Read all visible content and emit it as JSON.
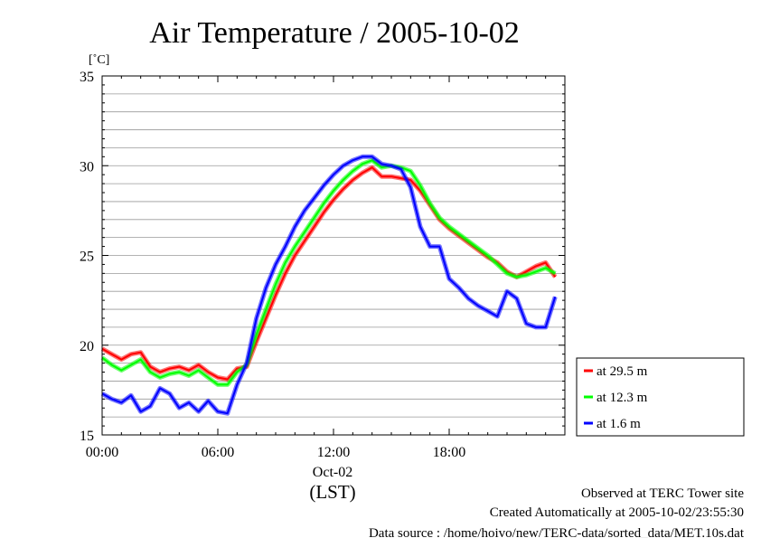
{
  "title": "Air Temperature / 2005-10-02",
  "y_unit": "[˚C]",
  "x_date_label": "Oct-02",
  "x_tz_label": "(LST)",
  "footer": {
    "line1": "Observed at TERC Tower site",
    "line2": "Created Automatically at 2005-10-02/23:55:30",
    "line3": "Data source : /home/hoivo/new/TERC-data/sorted_data/MET.10s.dat"
  },
  "chart_data": {
    "type": "line",
    "title": "Air Temperature / 2005-10-02",
    "xlabel": "(LST)",
    "ylabel": "[˚C]",
    "xlim": [
      0,
      24
    ],
    "ylim": [
      15,
      35
    ],
    "x_ticks": [
      {
        "value": 0,
        "label": "00:00"
      },
      {
        "value": 6,
        "label": "06:00"
      },
      {
        "value": 12,
        "label": "12:00"
      },
      {
        "value": 18,
        "label": "18:00"
      }
    ],
    "y_ticks": [
      {
        "value": 15,
        "label": "15"
      },
      {
        "value": 20,
        "label": "20"
      },
      {
        "value": 25,
        "label": "25"
      },
      {
        "value": 30,
        "label": "30"
      },
      {
        "value": 35,
        "label": "35"
      }
    ],
    "grid": true,
    "grid_step_y": 1,
    "legend_position": "right",
    "series": [
      {
        "name": "at 29.5 m",
        "color": "#ff0000",
        "x": [
          0,
          0.5,
          1,
          1.5,
          2,
          2.5,
          3,
          3.5,
          4,
          4.5,
          5,
          5.5,
          6,
          6.5,
          7,
          7.5,
          8,
          8.5,
          9,
          9.5,
          10,
          10.5,
          11,
          11.5,
          12,
          12.5,
          13,
          13.5,
          14,
          14.5,
          15,
          15.5,
          16,
          16.5,
          17,
          17.5,
          18,
          18.5,
          19,
          19.5,
          20,
          20.5,
          21,
          21.5,
          22,
          22.5,
          23,
          23.5
        ],
        "y": [
          19.8,
          19.5,
          19.2,
          19.5,
          19.6,
          18.8,
          18.5,
          18.7,
          18.8,
          18.6,
          18.9,
          18.5,
          18.2,
          18.1,
          18.7,
          18.8,
          20.2,
          21.5,
          22.8,
          24.0,
          25.0,
          25.8,
          26.6,
          27.4,
          28.1,
          28.7,
          29.2,
          29.6,
          29.9,
          29.4,
          29.4,
          29.3,
          29.2,
          28.6,
          27.8,
          27.0,
          26.5,
          26.1,
          25.7,
          25.3,
          24.9,
          24.6,
          24.1,
          23.8,
          24.1,
          24.4,
          24.6,
          23.8
        ]
      },
      {
        "name": "at 12.3 m",
        "color": "#00ff00",
        "x": [
          0,
          0.5,
          1,
          1.5,
          2,
          2.5,
          3,
          3.5,
          4,
          4.5,
          5,
          5.5,
          6,
          6.5,
          7,
          7.5,
          8,
          8.5,
          9,
          9.5,
          10,
          10.5,
          11,
          11.5,
          12,
          12.5,
          13,
          13.5,
          14,
          14.5,
          15,
          15.5,
          16,
          16.5,
          17,
          17.5,
          18,
          18.5,
          19,
          19.5,
          20,
          20.5,
          21,
          21.5,
          22,
          22.5,
          23,
          23.5
        ],
        "y": [
          19.3,
          18.9,
          18.6,
          18.9,
          19.2,
          18.5,
          18.2,
          18.4,
          18.5,
          18.3,
          18.6,
          18.2,
          17.8,
          17.8,
          18.5,
          18.9,
          20.6,
          22.0,
          23.4,
          24.6,
          25.5,
          26.3,
          27.1,
          27.9,
          28.6,
          29.2,
          29.7,
          30.1,
          30.3,
          29.9,
          30.0,
          29.9,
          29.7,
          28.9,
          27.9,
          27.1,
          26.6,
          26.2,
          25.8,
          25.4,
          25.0,
          24.5,
          24.0,
          23.8,
          23.9,
          24.1,
          24.3,
          24.0
        ]
      },
      {
        "name": "at 1.6 m",
        "color": "#0000ff",
        "x": [
          0,
          0.5,
          1,
          1.5,
          2,
          2.5,
          3,
          3.5,
          4,
          4.5,
          5,
          5.5,
          6,
          6.5,
          7,
          7.5,
          8,
          8.5,
          9,
          9.5,
          10,
          10.5,
          11,
          11.5,
          12,
          12.5,
          13,
          13.5,
          14,
          14.5,
          15,
          15.5,
          16,
          16.5,
          17,
          17.5,
          18,
          18.5,
          19,
          19.5,
          20,
          20.5,
          21,
          21.5,
          22,
          22.5,
          23,
          23.5
        ],
        "y": [
          17.3,
          17.0,
          16.8,
          17.2,
          16.3,
          16.6,
          17.6,
          17.3,
          16.5,
          16.8,
          16.3,
          16.9,
          16.3,
          16.2,
          17.8,
          19.0,
          21.5,
          23.2,
          24.5,
          25.5,
          26.6,
          27.5,
          28.2,
          28.9,
          29.5,
          30.0,
          30.3,
          30.5,
          30.5,
          30.1,
          30.0,
          29.8,
          28.8,
          26.6,
          25.5,
          25.5,
          23.7,
          23.2,
          22.6,
          22.2,
          21.9,
          21.6,
          23.0,
          22.6,
          21.2,
          21.0,
          21.0,
          22.7
        ]
      }
    ]
  }
}
